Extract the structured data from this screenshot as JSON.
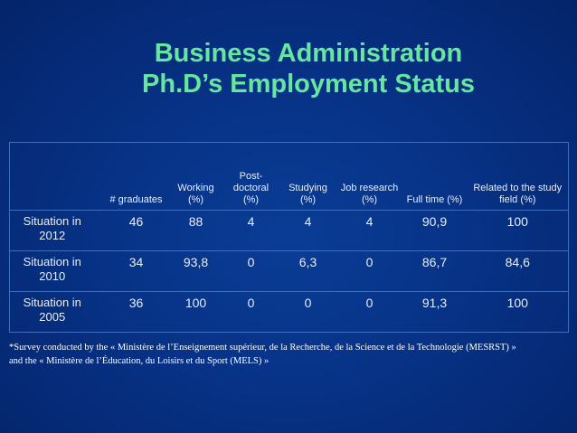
{
  "title": {
    "line1": "Business Administration",
    "line2": "Ph.D’s Employment Status"
  },
  "table": {
    "columns": [
      "",
      "# graduates",
      "Working (%)",
      "Post-doctoral (%)",
      "Studying (%)",
      "Job research (%)",
      "Full time (%)",
      "Related to the study field (%)"
    ],
    "rows": [
      {
        "label": "Situation in 2012",
        "values": [
          "46",
          "88",
          "4",
          "4",
          "4",
          "90,9",
          "100"
        ]
      },
      {
        "label": "Situation in 2010",
        "values": [
          "34",
          "93,8",
          "0",
          "6,3",
          "0",
          "86,7",
          "84,6"
        ]
      },
      {
        "label": "Situation in 2005",
        "values": [
          "36",
          "100",
          "0",
          "0",
          "0",
          "91,3",
          "100"
        ]
      }
    ]
  },
  "footnote": {
    "line1": "*Survey conducted by the « Ministère de l’Enseignement supérieur, de la Recherche, de la Science et de la Technologie (MESRST) »",
    "line2": "and the « Ministère de l’Éducation, du Loisirs et du Sport (MELS) »"
  },
  "colors": {
    "background": "#073286",
    "title": "#66e6a0",
    "text": "#e8eef8",
    "gridline": "#3d6ebf"
  }
}
